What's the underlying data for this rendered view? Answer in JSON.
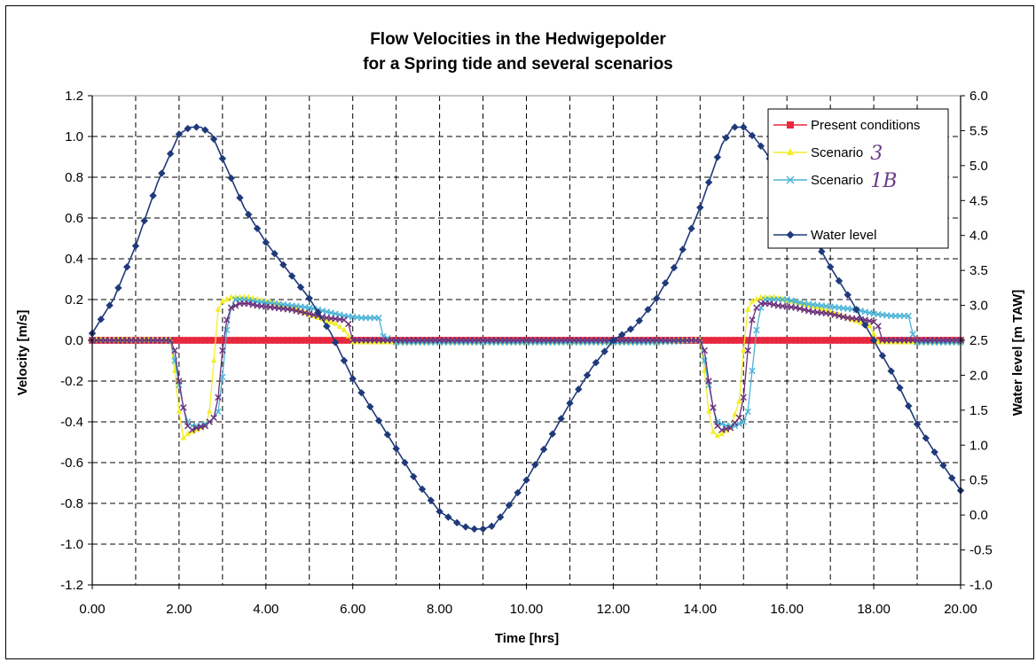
{
  "chart_data": {
    "type": "line",
    "title": "Flow Velocities in the Hedwigepolder",
    "subtitle": "for a Spring tide and several scenarios",
    "xlabel": "Time [hrs]",
    "ylabel": "Velocity [m/s]",
    "y2label": "Water level [m TAW]",
    "xlim": [
      0,
      20
    ],
    "ylim": [
      -1.2,
      1.2
    ],
    "y2lim": [
      -1.0,
      6.0
    ],
    "x_ticks": [
      "0.00",
      "2.00",
      "4.00",
      "6.00",
      "8.00",
      "10.00",
      "12.00",
      "14.00",
      "16.00",
      "18.00",
      "20.00"
    ],
    "y_ticks": [
      "1.2",
      "1.0",
      "0.8",
      "0.6",
      "0.4",
      "0.2",
      "0.0",
      "-0.2",
      "-0.4",
      "-0.6",
      "-0.8",
      "-1.0",
      "-1.2"
    ],
    "y2_ticks": [
      "6.0",
      "5.5",
      "5.0",
      "4.5",
      "4.0",
      "3.5",
      "3.0",
      "2.5",
      "2.0",
      "1.5",
      "1.0",
      "0.5",
      "0.0",
      "-0.5",
      "-1.0"
    ],
    "grid": true,
    "legend_position": "top-right",
    "legend": [
      {
        "label": "Present conditions",
        "handwritten": ""
      },
      {
        "label": "Scenario",
        "handwritten": "3"
      },
      {
        "label": "Scenario",
        "handwritten": "1B"
      },
      {
        "label": "",
        "handwritten": ""
      },
      {
        "label": "Water level",
        "handwritten": ""
      }
    ],
    "series": [
      {
        "name": "Present conditions",
        "axis": "left",
        "color": "#e8283f",
        "marker": "square",
        "x": [
          0,
          20
        ],
        "y": [
          0.0,
          0.0
        ]
      },
      {
        "name": "Scenario 3",
        "axis": "left",
        "color": "#f2ee2a",
        "marker": "triangle",
        "x": [
          0.0,
          1.8,
          1.9,
          2.0,
          2.1,
          2.2,
          2.4,
          2.6,
          2.7,
          2.8,
          2.9,
          3.0,
          3.1,
          3.2,
          3.4,
          3.6,
          3.8,
          4.0,
          4.4,
          4.8,
          5.2,
          5.6,
          5.8,
          5.9,
          6.0,
          7.0,
          10.0,
          13.0,
          14.0,
          14.1,
          14.2,
          14.3,
          14.4,
          14.5,
          14.7,
          14.9,
          15.0,
          15.1,
          15.2,
          15.3,
          15.4,
          15.5,
          15.7,
          15.9,
          16.1,
          16.3,
          16.7,
          17.1,
          17.5,
          17.9,
          18.0,
          18.1,
          18.2,
          19.0,
          20.0
        ],
        "y": [
          0.0,
          0.0,
          -0.15,
          -0.35,
          -0.48,
          -0.46,
          -0.44,
          -0.42,
          -0.35,
          -0.1,
          0.15,
          0.19,
          0.2,
          0.21,
          0.21,
          0.21,
          0.2,
          0.19,
          0.17,
          0.14,
          0.11,
          0.08,
          0.05,
          0.02,
          -0.01,
          -0.01,
          -0.01,
          -0.01,
          0.0,
          -0.15,
          -0.35,
          -0.45,
          -0.47,
          -0.46,
          -0.43,
          -0.3,
          -0.05,
          0.15,
          0.19,
          0.2,
          0.21,
          0.21,
          0.21,
          0.2,
          0.19,
          0.18,
          0.16,
          0.13,
          0.1,
          0.07,
          0.03,
          -0.01,
          -0.01,
          -0.01,
          -0.01
        ]
      },
      {
        "name": "Scenario 1B",
        "axis": "left",
        "color": "#4bb3d6",
        "marker": "x",
        "x": [
          0.0,
          1.8,
          1.9,
          2.0,
          2.1,
          2.2,
          2.3,
          2.5,
          2.7,
          2.8,
          2.9,
          3.0,
          3.1,
          3.2,
          3.3,
          3.5,
          3.8,
          4.2,
          4.6,
          5.0,
          5.4,
          5.8,
          6.2,
          6.6,
          6.7,
          7.0,
          10.0,
          13.0,
          14.0,
          14.1,
          14.2,
          14.3,
          14.4,
          14.6,
          14.8,
          15.0,
          15.1,
          15.2,
          15.3,
          15.4,
          15.5,
          15.7,
          16.0,
          16.4,
          16.8,
          17.2,
          17.6,
          18.0,
          18.4,
          18.8,
          18.9,
          19.0,
          20.0
        ],
        "y": [
          0.0,
          0.0,
          -0.1,
          -0.22,
          -0.33,
          -0.4,
          -0.42,
          -0.42,
          -0.4,
          -0.38,
          -0.35,
          -0.18,
          0.05,
          0.16,
          0.2,
          0.2,
          0.19,
          0.18,
          0.17,
          0.16,
          0.14,
          0.12,
          0.11,
          0.11,
          0.02,
          -0.01,
          -0.01,
          -0.01,
          0.0,
          -0.1,
          -0.22,
          -0.33,
          -0.4,
          -0.42,
          -0.42,
          -0.4,
          -0.35,
          -0.15,
          0.05,
          0.16,
          0.2,
          0.2,
          0.2,
          0.18,
          0.17,
          0.16,
          0.15,
          0.13,
          0.12,
          0.12,
          0.03,
          -0.01,
          -0.01
        ]
      },
      {
        "name": "Scenario (purple)",
        "axis": "left",
        "color": "#6b2f7a",
        "marker": "x",
        "x": [
          0.0,
          1.8,
          1.9,
          2.0,
          2.1,
          2.2,
          2.3,
          2.4,
          2.6,
          2.8,
          2.9,
          3.0,
          3.1,
          3.2,
          3.4,
          3.6,
          3.8,
          4.2,
          4.6,
          5.0,
          5.4,
          5.8,
          5.9,
          6.0,
          6.5,
          10.0,
          13.0,
          14.0,
          14.1,
          14.2,
          14.3,
          14.4,
          14.5,
          14.7,
          14.9,
          15.0,
          15.1,
          15.2,
          15.3,
          15.4,
          15.6,
          15.8,
          16.2,
          16.6,
          17.0,
          17.4,
          17.8,
          18.0,
          18.1,
          18.2,
          18.5,
          20.0
        ],
        "y": [
          0.0,
          0.0,
          -0.05,
          -0.2,
          -0.33,
          -0.42,
          -0.44,
          -0.43,
          -0.42,
          -0.38,
          -0.28,
          -0.05,
          0.1,
          0.16,
          0.18,
          0.18,
          0.17,
          0.16,
          0.15,
          0.13,
          0.11,
          0.1,
          0.08,
          0.0,
          0.0,
          0.0,
          0.0,
          0.0,
          -0.05,
          -0.2,
          -0.33,
          -0.42,
          -0.44,
          -0.43,
          -0.38,
          -0.28,
          -0.05,
          0.1,
          0.16,
          0.18,
          0.18,
          0.17,
          0.16,
          0.14,
          0.13,
          0.11,
          0.1,
          0.09,
          0.07,
          0.0,
          0.0,
          0.0
        ]
      },
      {
        "name": "Water level",
        "axis": "right",
        "color": "#1f3a7a",
        "marker": "diamond",
        "x": [
          0.0,
          0.5,
          1.0,
          1.5,
          2.0,
          2.25,
          2.5,
          2.75,
          3.0,
          3.5,
          4.0,
          4.5,
          5.0,
          5.5,
          6.0,
          6.5,
          7.0,
          7.5,
          8.0,
          8.5,
          8.75,
          9.0,
          9.25,
          9.5,
          10.0,
          10.5,
          11.0,
          11.5,
          12.0,
          12.5,
          13.0,
          13.5,
          14.0,
          14.5,
          14.75,
          15.0,
          15.25,
          15.5,
          16.0,
          16.5,
          17.0,
          17.5,
          18.0,
          18.5,
          19.0,
          19.5,
          20.0
        ],
        "y": [
          2.6,
          3.1,
          3.85,
          4.75,
          5.45,
          5.55,
          5.55,
          5.45,
          5.1,
          4.4,
          3.9,
          3.5,
          3.1,
          2.6,
          1.95,
          1.45,
          0.95,
          0.45,
          0.05,
          -0.15,
          -0.2,
          -0.2,
          -0.15,
          0.05,
          0.5,
          1.05,
          1.6,
          2.1,
          2.5,
          2.7,
          3.1,
          3.65,
          4.4,
          5.3,
          5.55,
          5.55,
          5.4,
          5.2,
          4.7,
          4.1,
          3.55,
          3.05,
          2.5,
          1.95,
          1.3,
          0.8,
          0.35
        ]
      }
    ]
  }
}
